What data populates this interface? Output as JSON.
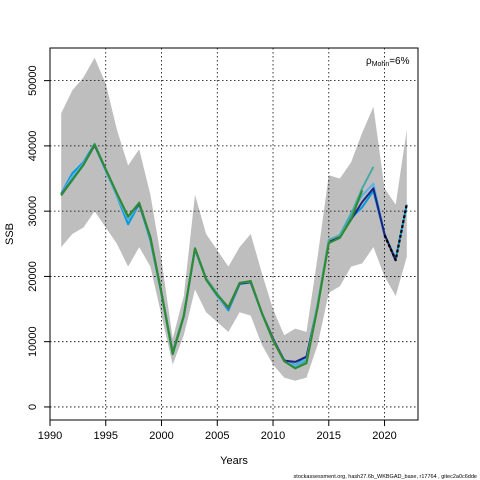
{
  "chart_data": {
    "type": "line",
    "title": "",
    "xlabel": "Years",
    "ylabel": "SSB",
    "xlim": [
      1990,
      2023
    ],
    "ylim": [
      -2000,
      55000
    ],
    "x_ticks": [
      1990,
      1995,
      2000,
      2005,
      2010,
      2015,
      2020
    ],
    "y_ticks": [
      0,
      10000,
      20000,
      30000,
      40000,
      50000
    ],
    "grid": true,
    "annotation": {
      "label": "ρ",
      "subscript": "Mohn",
      "value": "=6%"
    },
    "footer": "stockassessment.org, hash27.6b_WKBGAD_base, r17764 , gitec2a0c6dde",
    "colors": {
      "band": "#bebebe",
      "frame": "#000000",
      "grid": "#000000",
      "base": "#000000"
    },
    "confidence_band": {
      "x": [
        1991,
        1992,
        1993,
        1994,
        1995,
        1996,
        1997,
        1998,
        1999,
        2000,
        2001,
        2002,
        2003,
        2004,
        2005,
        2006,
        2007,
        2008,
        2009,
        2010,
        2011,
        2012,
        2013,
        2014,
        2015,
        2016,
        2017,
        2018,
        2019,
        2020,
        2021,
        2022
      ],
      "upper": [
        45000,
        48500,
        50500,
        53500,
        49500,
        42500,
        37000,
        39500,
        32500,
        22500,
        10500,
        17000,
        32500,
        26500,
        24000,
        21500,
        24500,
        26500,
        20500,
        15000,
        11000,
        12000,
        11500,
        23000,
        35500,
        35000,
        37500,
        42000,
        46000,
        33500,
        31000,
        42500
      ],
      "lower": [
        24500,
        26500,
        27500,
        30000,
        27500,
        25000,
        21500,
        24500,
        21500,
        14000,
        6500,
        11000,
        18000,
        14500,
        13000,
        11500,
        14500,
        14000,
        9500,
        6500,
        4500,
        4000,
        4500,
        9500,
        17500,
        18500,
        21500,
        22000,
        24500,
        20000,
        17000,
        23000
      ]
    },
    "series": [
      {
        "color": "#0099dd",
        "x": [
          1991,
          1992,
          1993,
          1994,
          1995,
          1996,
          1997,
          1998,
          1999,
          2000,
          2001,
          2002,
          2003,
          2004,
          2005,
          2006,
          2007,
          2008,
          2009,
          2010,
          2011,
          2012,
          2013,
          2014,
          2015,
          2016,
          2017,
          2018,
          2019,
          2020,
          2021,
          2022
        ],
        "values": [
          32700,
          35800,
          37500,
          40300,
          36300,
          32300,
          28000,
          31100,
          25500,
          17300,
          8100,
          14000,
          24200,
          19600,
          17000,
          14800,
          18800,
          19100,
          14300,
          10300,
          7200,
          6400,
          7600,
          15600,
          25400,
          26300,
          28900,
          30600,
          33100,
          26400,
          22700,
          31000
        ]
      },
      {
        "color": "#5ab4e8",
        "x": [
          1991,
          1992,
          1993,
          1994,
          1995,
          1996,
          1997,
          1998,
          1999,
          2000,
          2001,
          2002,
          2003,
          2004,
          2005,
          2006,
          2007,
          2008,
          2009,
          2010,
          2011,
          2012,
          2013,
          2014,
          2015,
          2016,
          2017,
          2018,
          2019,
          2020
        ],
        "values": [
          32700,
          35300,
          37300,
          40100,
          36100,
          32300,
          28700,
          31100,
          25800,
          17300,
          8100,
          13800,
          24000,
          19500,
          16900,
          15000,
          18800,
          19100,
          14300,
          10300,
          7100,
          6300,
          7400,
          15600,
          25300,
          26400,
          29700,
          32400,
          34200,
          26600
        ]
      },
      {
        "color": "#212180",
        "x": [
          1991,
          1992,
          1993,
          1994,
          1995,
          1996,
          1997,
          1998,
          1999,
          2000,
          2001,
          2002,
          2003,
          2004,
          2005,
          2006,
          2007,
          2008,
          2009,
          2010,
          2011,
          2012,
          2013,
          2014,
          2015,
          2016,
          2017,
          2018,
          2019,
          2020,
          2021
        ],
        "values": [
          32600,
          34800,
          37100,
          40100,
          36400,
          32700,
          29100,
          31100,
          26000,
          17500,
          8400,
          14000,
          24300,
          19700,
          17300,
          15100,
          18900,
          19100,
          14400,
          10500,
          7100,
          6900,
          7700,
          15400,
          25400,
          26100,
          28700,
          31400,
          33500,
          26500,
          22400
        ]
      },
      {
        "color": "#4aa8a0",
        "x": [
          1991,
          1992,
          1993,
          1994,
          1995,
          1996,
          1997,
          1998,
          1999,
          2000,
          2001,
          2002,
          2003,
          2004,
          2005,
          2006,
          2007,
          2008,
          2009,
          2010,
          2011,
          2012,
          2013,
          2014,
          2015,
          2016,
          2017,
          2018,
          2019
        ],
        "values": [
          32500,
          34700,
          37100,
          40300,
          36400,
          32600,
          29000,
          31300,
          25900,
          17500,
          8300,
          14100,
          24300,
          19700,
          17300,
          15200,
          19000,
          19200,
          14400,
          10300,
          7000,
          6000,
          7100,
          15700,
          25600,
          26300,
          29500,
          33500,
          36800
        ]
      },
      {
        "color": "#2e8b2e",
        "x": [
          1991,
          1992,
          1993,
          1994,
          1995,
          1996,
          1997,
          1998,
          1999,
          2000,
          2001,
          2002,
          2003,
          2004,
          2005,
          2006,
          2007,
          2008,
          2009,
          2010,
          2011,
          2012,
          2013,
          2014,
          2015,
          2016,
          2017,
          2018
        ],
        "values": [
          32400,
          34800,
          37100,
          40200,
          36400,
          32700,
          29200,
          31300,
          26000,
          17400,
          8100,
          13900,
          24300,
          19500,
          17100,
          15300,
          19000,
          19300,
          14400,
          10200,
          7000,
          5900,
          6700,
          15200,
          25100,
          25900,
          28700,
          33200
        ]
      },
      {
        "color": "#000000",
        "dashed": true,
        "x": [
          2020,
          2021,
          2022
        ],
        "values": [
          26300,
          22500,
          31100
        ]
      }
    ]
  }
}
